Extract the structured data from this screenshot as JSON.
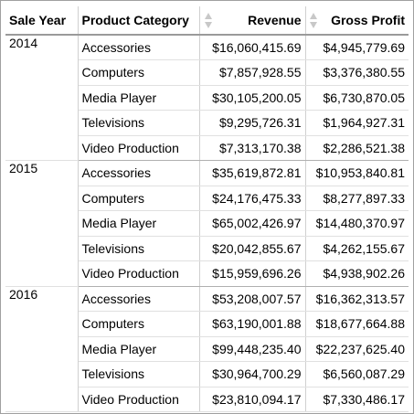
{
  "table": {
    "columns": [
      "Sale Year",
      "Product Category",
      "Revenue",
      "Gross Profit"
    ],
    "groups": [
      {
        "year": "2014",
        "rows": [
          {
            "category": "Accessories",
            "revenue": "$16,060,415.69",
            "profit": "$4,945,779.69"
          },
          {
            "category": "Computers",
            "revenue": "$7,857,928.55",
            "profit": "$3,376,380.55"
          },
          {
            "category": "Media Player",
            "revenue": "$30,105,200.05",
            "profit": "$6,730,870.05"
          },
          {
            "category": "Televisions",
            "revenue": "$9,295,726.31",
            "profit": "$1,964,927.31"
          },
          {
            "category": "Video Production",
            "revenue": "$7,313,170.38",
            "profit": "$2,286,521.38"
          }
        ]
      },
      {
        "year": "2015",
        "rows": [
          {
            "category": "Accessories",
            "revenue": "$35,619,872.81",
            "profit": "$10,953,840.81"
          },
          {
            "category": "Computers",
            "revenue": "$24,176,475.33",
            "profit": "$8,277,897.33"
          },
          {
            "category": "Media Player",
            "revenue": "$65,002,426.97",
            "profit": "$14,480,370.97"
          },
          {
            "category": "Televisions",
            "revenue": "$20,042,855.67",
            "profit": "$4,262,155.67"
          },
          {
            "category": "Video Production",
            "revenue": "$15,959,696.26",
            "profit": "$4,938,902.26"
          }
        ]
      },
      {
        "year": "2016",
        "rows": [
          {
            "category": "Accessories",
            "revenue": "$53,208,007.57",
            "profit": "$16,362,313.57"
          },
          {
            "category": "Computers",
            "revenue": "$63,190,001.88",
            "profit": "$18,677,664.88"
          },
          {
            "category": "Media Player",
            "revenue": "$99,448,235.40",
            "profit": "$22,237,625.40"
          },
          {
            "category": "Televisions",
            "revenue": "$30,964,700.29",
            "profit": "$6,560,087.29"
          },
          {
            "category": "Video Production",
            "revenue": "$23,810,094.17",
            "profit": "$7,330,486.17"
          }
        ]
      }
    ]
  },
  "icons": {
    "sort": "sort-updown-icon"
  },
  "colors": {
    "header_rule": "#9a9a9a",
    "grid_line": "#d0d0d0",
    "sort_icon": "#c8c8c8"
  }
}
